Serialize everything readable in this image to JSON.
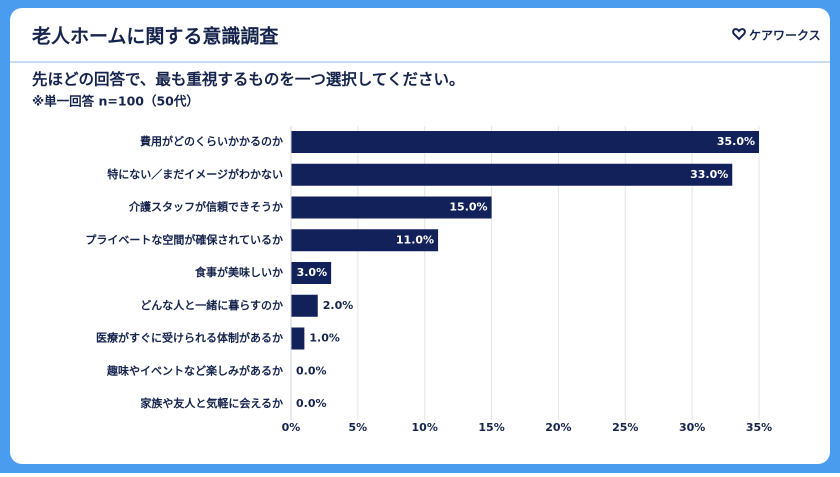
{
  "header": {
    "title": "老人ホームに関する意識調査",
    "logo": "ケアワークス"
  },
  "chart_data": {
    "type": "bar",
    "orientation": "horizontal",
    "title": "先ほどの回答で、最も重視するものを一つ選択してください。",
    "subtitle": "※単一回答 n=100（50代）",
    "categories": [
      "費用がどのくらいかかるのか",
      "特にない／まだイメージがわかない",
      "介護スタッフが信頼できそうか",
      "プライベートな空間が確保されているか",
      "食事が美味しいか",
      "どんな人と一緒に暮らすのか",
      "医療がすぐに受けられる体制があるか",
      "趣味やイベントなど楽しみがあるか",
      "家族や友人と気軽に会えるか"
    ],
    "values": [
      35,
      33,
      15,
      11,
      3,
      2,
      1,
      0,
      0
    ],
    "value_labels": [
      "35.0%",
      "33.0%",
      "15.0%",
      "11.0%",
      "3.0%",
      "2.0%",
      "1.0%",
      "0.0%",
      "0.0%"
    ],
    "color": "#12215a",
    "xlim": [
      0,
      35
    ],
    "xticks": [
      {
        "value": 0,
        "label": "0%"
      },
      {
        "value": 5,
        "label": "5%"
      },
      {
        "value": 10,
        "label": "10%"
      },
      {
        "value": 15,
        "label": "15%"
      },
      {
        "value": 20,
        "label": "20%"
      },
      {
        "value": 25,
        "label": "25%"
      },
      {
        "value": 30,
        "label": "30%"
      },
      {
        "value": 35,
        "label": "35%"
      }
    ],
    "grid": true
  }
}
